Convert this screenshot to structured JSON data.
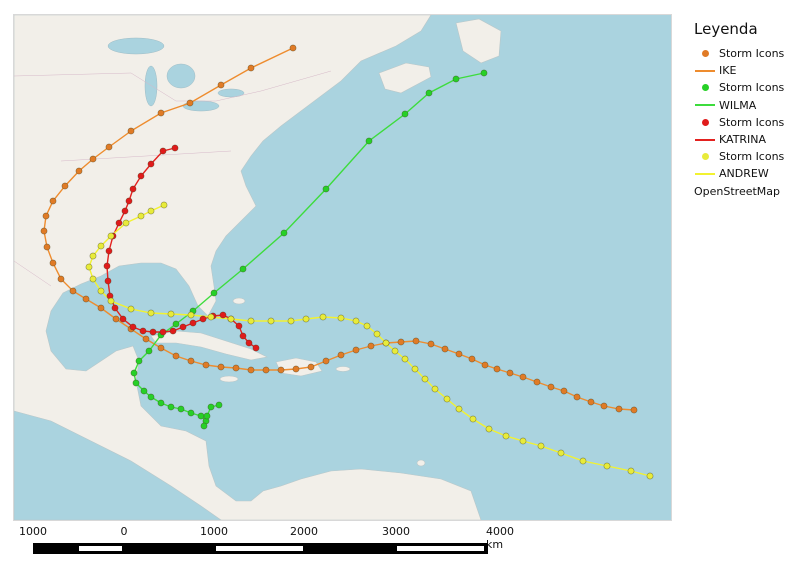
{
  "legend": {
    "title": "Leyenda",
    "items": [
      {
        "label": "Storm Icons",
        "kind": "point",
        "color": "#e07b26"
      },
      {
        "label": "IKE",
        "kind": "line",
        "color": "#ee8c2e"
      },
      {
        "label": "Storm Icons",
        "kind": "point",
        "color": "#27d027"
      },
      {
        "label": "WILMA",
        "kind": "line",
        "color": "#3ddc3d"
      },
      {
        "label": "Storm Icons",
        "kind": "point",
        "color": "#e01b1b"
      },
      {
        "label": "KATRINA",
        "kind": "line",
        "color": "#e3211f"
      },
      {
        "label": "Storm Icons",
        "kind": "point",
        "color": "#e8eb3a"
      },
      {
        "label": "ANDREW",
        "kind": "line",
        "color": "#f2f230"
      },
      {
        "label": "OpenStreetMap",
        "kind": "basemap"
      }
    ]
  },
  "basemap": {
    "ocean_color": "#aad3df",
    "land_color": "#f2efe9"
  },
  "scale_bar": {
    "labels": [
      "1000",
      "0",
      "1000",
      "2000",
      "3000",
      "4000 km"
    ]
  }
}
